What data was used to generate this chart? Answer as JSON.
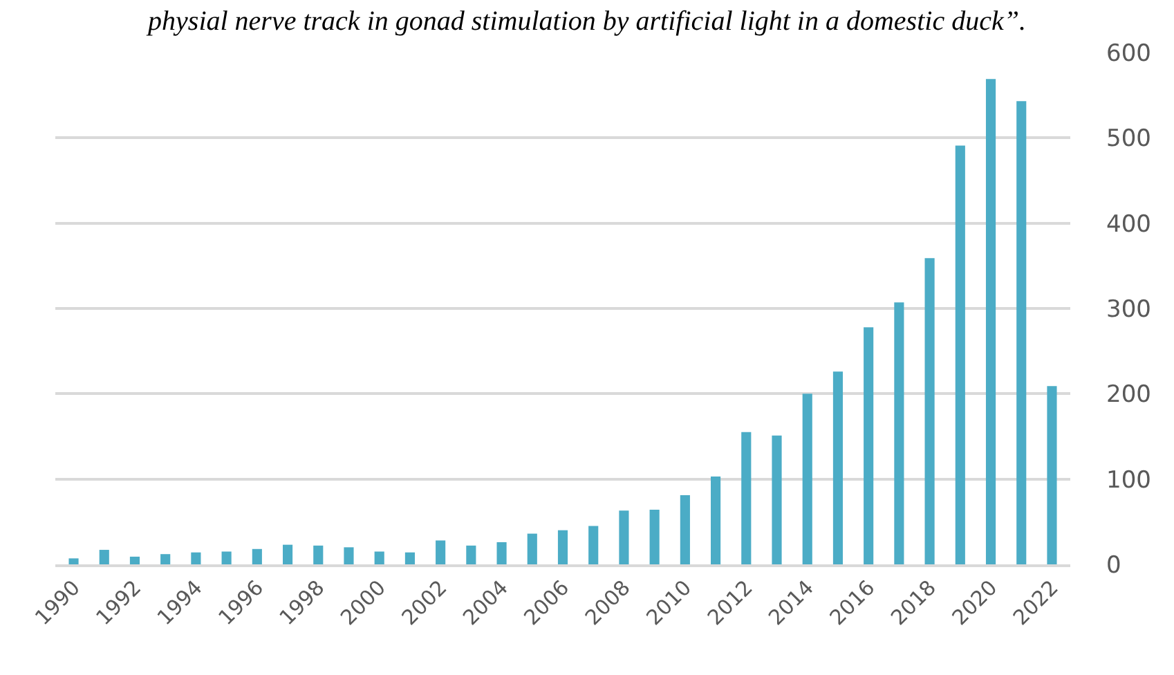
{
  "chart_data": {
    "type": "bar",
    "title": "physial nerve track in gonad stimulation by artificial light in a domestic duck”.",
    "categories": [
      "1990",
      null,
      "1992",
      null,
      "1994",
      null,
      "1996",
      null,
      "1998",
      null,
      "2000",
      null,
      "2002",
      null,
      "2004",
      null,
      "2006",
      null,
      "2008",
      null,
      "2010",
      null,
      "2012",
      null,
      "2014",
      null,
      "2016",
      null,
      "2018",
      null,
      "2020",
      null,
      "2022"
    ],
    "values": [
      7,
      17,
      9,
      12,
      14,
      15,
      18,
      23,
      22,
      20,
      15,
      14,
      28,
      22,
      26,
      36,
      40,
      45,
      63,
      64,
      81,
      103,
      155,
      151,
      200,
      226,
      278,
      307,
      359,
      491,
      569,
      543,
      209
    ],
    "color": "#4bacc6",
    "ylim": [
      0,
      600
    ],
    "yticks": [
      0,
      100,
      200,
      300,
      400,
      500,
      600
    ],
    "grid": "y",
    "legend": false
  }
}
